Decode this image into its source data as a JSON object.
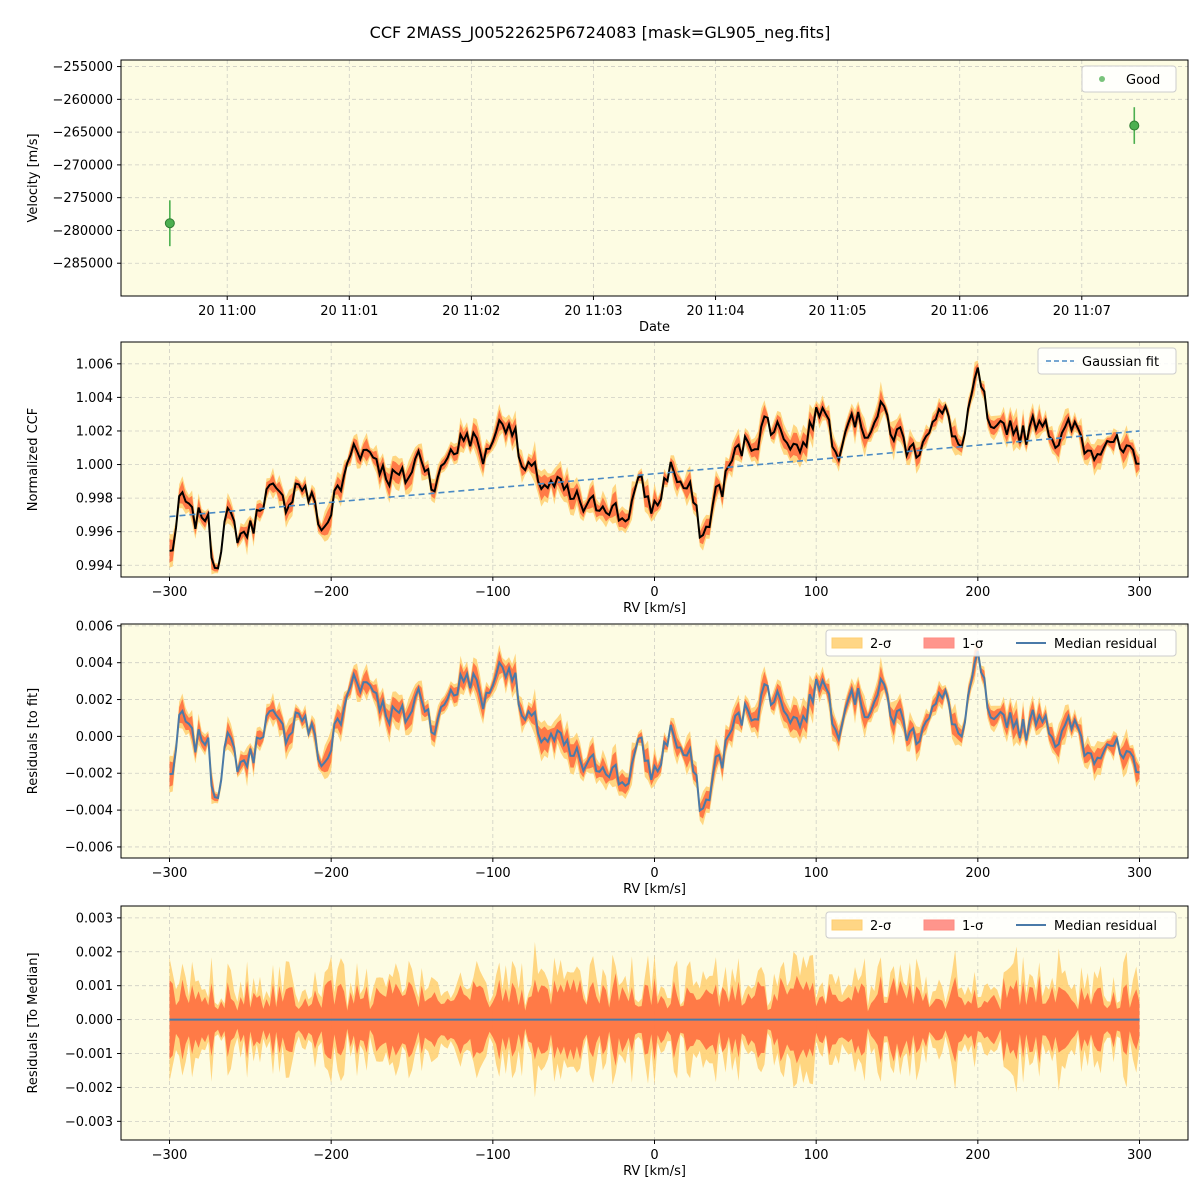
{
  "figure": {
    "title": "CCF 2MASS_J00522625P6724083 [mask=GL905_neg.fits]",
    "background": "#fdfce3",
    "colors": {
      "good": "#4caf50",
      "fit": "#4a8ac4",
      "ccf": "#000000",
      "sigma2": "#ffcf70",
      "sigma1": "#ff6a3d",
      "median": "#4a7aa8"
    }
  },
  "chart_data": [
    {
      "type": "scatter",
      "xlabel": "Date",
      "ylabel": "Velocity [m/s]",
      "x_ticks": [
        "20 11:00",
        "20 11:01",
        "20 11:02",
        "20 11:03",
        "20 11:04",
        "20 11:05",
        "20 11:06",
        "20 11:07"
      ],
      "x_tick_values": [
        0,
        1,
        2,
        3,
        4,
        5,
        6,
        7
      ],
      "xlim": [
        -0.87,
        7.87
      ],
      "ylim": [
        -290000,
        -254000
      ],
      "y_ticks": [
        -255000,
        -260000,
        -265000,
        -270000,
        -275000,
        -280000,
        -285000
      ],
      "y_tick_labels": [
        "−255000",
        "−260000",
        "−265000",
        "−270000",
        "−275000",
        "−280000",
        "−285000"
      ],
      "series": [
        {
          "name": "Good",
          "points": [
            {
              "x": -0.47,
              "y": -278900,
              "err": 3500
            },
            {
              "x": 7.43,
              "y": -264000,
              "err": 2800
            }
          ]
        }
      ],
      "legend": "top-right",
      "grid": true
    },
    {
      "type": "line",
      "xlabel": "RV [km/s]",
      "ylabel": "Normalized CCF",
      "xlim": [
        -330,
        330
      ],
      "ylim": [
        0.9933,
        1.0073
      ],
      "x_ticks": [
        -300,
        -200,
        -100,
        0,
        100,
        200,
        300
      ],
      "x_tick_labels": [
        "−300",
        "−200",
        "−100",
        "0",
        "100",
        "200",
        "300"
      ],
      "y_ticks": [
        0.994,
        0.996,
        0.998,
        1.0,
        1.002,
        1.004,
        1.006
      ],
      "y_tick_labels": [
        "0.994",
        "0.996",
        "0.998",
        "1.000",
        "1.002",
        "1.004",
        "1.006"
      ],
      "fit": {
        "name": "Gaussian fit",
        "x": [
          -300,
          300
        ],
        "y": [
          0.9969,
          1.002
        ]
      },
      "ccf_keypoints": {
        "x": [
          -300,
          -292,
          -285,
          -278,
          -272,
          -265,
          -258,
          -250,
          -240,
          -230,
          -220,
          -212,
          -205,
          -195,
          -185,
          -175,
          -165,
          -155,
          -145,
          -135,
          -125,
          -115,
          -105,
          -98,
          -90,
          -80,
          -70,
          -60,
          -50,
          -40,
          -30,
          -20,
          -10,
          0,
          10,
          20,
          30,
          40,
          50,
          60,
          70,
          80,
          90,
          100,
          105,
          112,
          120,
          130,
          140,
          150,
          160,
          170,
          180,
          190,
          200,
          210,
          220,
          230,
          240,
          250,
          260,
          270,
          280,
          290,
          300
        ],
        "y": [
          0.9947,
          0.9978,
          0.9965,
          0.9972,
          0.9942,
          0.9968,
          0.9958,
          0.9962,
          0.9985,
          0.9975,
          0.999,
          0.9978,
          0.9962,
          0.9985,
          1.0012,
          1.0008,
          0.9995,
          0.999,
          1.0005,
          0.999,
          1.001,
          1.0018,
          1.0005,
          1.0022,
          1.0028,
          0.9995,
          0.999,
          0.9985,
          0.9978,
          0.9972,
          0.998,
          0.9968,
          0.9985,
          0.9975,
          0.9998,
          0.9985,
          0.9958,
          0.9985,
          1.0005,
          1.0015,
          1.0025,
          1.002,
          1.001,
          1.0028,
          1.004,
          1.0005,
          1.0035,
          1.0022,
          1.003,
          1.0018,
          1.0008,
          1.0025,
          1.0028,
          1.001,
          1.005,
          1.0012,
          1.0025,
          1.0018,
          1.003,
          1.0015,
          1.002,
          1.0008,
          1.002,
          1.0005,
          0.9995
        ]
      },
      "legend": "top-right",
      "grid": true
    },
    {
      "type": "area",
      "xlabel": "RV [km/s]",
      "ylabel": "Residuals [to fit]",
      "xlim": [
        -330,
        330
      ],
      "ylim": [
        -0.0066,
        0.0061
      ],
      "x_ticks": [
        -300,
        -200,
        -100,
        0,
        100,
        200,
        300
      ],
      "x_tick_labels": [
        "−300",
        "−200",
        "−100",
        "0",
        "100",
        "200",
        "300"
      ],
      "y_ticks": [
        0.006,
        0.004,
        0.002,
        0.0,
        -0.002,
        -0.004,
        -0.006
      ],
      "y_tick_labels": [
        "0.006",
        "0.004",
        "0.002",
        "0.000",
        "−0.002",
        "−0.004",
        "−0.006"
      ],
      "series_names": [
        "2-σ",
        "1-σ",
        "Median residual"
      ],
      "legend": "top-right",
      "grid": true
    },
    {
      "type": "area",
      "xlabel": "RV [km/s]",
      "ylabel": "Residuals [To Median]",
      "xlim": [
        -330,
        330
      ],
      "ylim": [
        -0.00355,
        0.00335
      ],
      "x_ticks": [
        -300,
        -200,
        -100,
        0,
        100,
        200,
        300
      ],
      "x_tick_labels": [
        "−300",
        "−200",
        "−100",
        "0",
        "100",
        "200",
        "300"
      ],
      "y_ticks": [
        0.003,
        0.002,
        0.001,
        0.0,
        -0.001,
        -0.002,
        -0.003
      ],
      "y_tick_labels": [
        "0.003",
        "0.002",
        "0.001",
        "0.000",
        "−0.001",
        "−0.002",
        "−0.003"
      ],
      "series_names": [
        "2-σ",
        "1-σ",
        "Median residual"
      ],
      "legend": "top-right",
      "grid": true
    }
  ]
}
